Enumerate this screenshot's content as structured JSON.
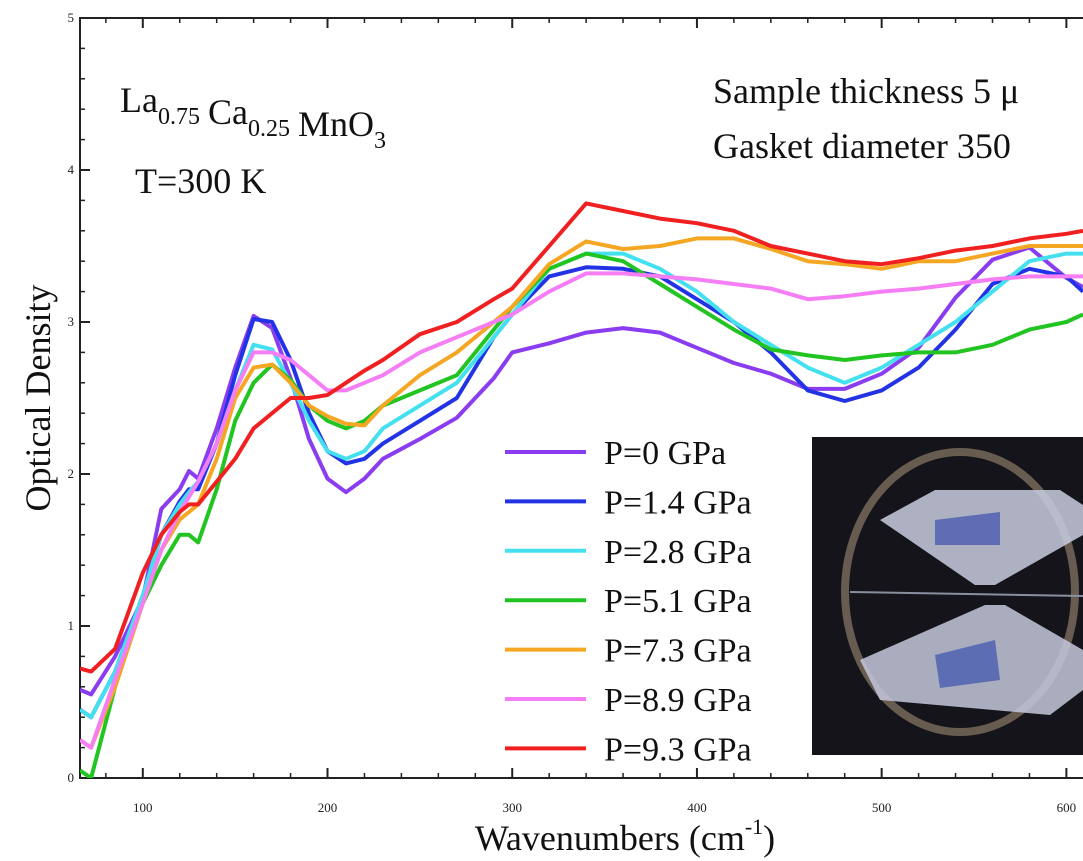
{
  "chart_data": {
    "type": "line",
    "xlabel": {
      "text": "Wavenumbers (cm",
      "sup": "-1",
      "end": ")"
    },
    "ylabel": "Optical Density",
    "annotations": {
      "formula": [
        {
          "text": "La",
          "sub": "0.75"
        },
        {
          "text": "Ca",
          "sub": "0.25"
        },
        {
          "text": "MnO",
          "sub": "3"
        }
      ],
      "temperature": "T=300 K",
      "thickness": "Sample thickness 5 μ",
      "gasket": "Gasket diameter 350"
    },
    "x": [
      66,
      72,
      85,
      100,
      110,
      120,
      125,
      130,
      140,
      150,
      160,
      170,
      180,
      190,
      200,
      210,
      220,
      230,
      250,
      270,
      290,
      300,
      320,
      340,
      360,
      380,
      400,
      420,
      440,
      460,
      480,
      500,
      520,
      540,
      560,
      580,
      600,
      609
    ],
    "series": [
      {
        "name": "P=0 GPa",
        "color": "#8a3cf0",
        "values": [
          0.58,
          0.55,
          0.8,
          1.18,
          1.77,
          1.9,
          2.02,
          1.97,
          2.3,
          2.7,
          3.04,
          2.96,
          2.63,
          2.23,
          1.97,
          1.88,
          1.97,
          2.1,
          2.23,
          2.37,
          2.63,
          2.8,
          2.86,
          2.93,
          2.96,
          2.93,
          2.83,
          2.73,
          2.66,
          2.56,
          2.56,
          2.66,
          2.83,
          3.16,
          3.41,
          3.49,
          3.29,
          3.23
        ]
      },
      {
        "name": "P=1.4 GPa",
        "color": "#2233e6",
        "values": [
          0.45,
          0.4,
          0.7,
          1.2,
          1.6,
          1.82,
          1.9,
          1.9,
          2.2,
          2.65,
          3.02,
          3.0,
          2.75,
          2.4,
          2.15,
          2.07,
          2.1,
          2.2,
          2.35,
          2.5,
          2.9,
          3.05,
          3.3,
          3.36,
          3.35,
          3.3,
          3.15,
          3.0,
          2.8,
          2.55,
          2.48,
          2.55,
          2.7,
          2.95,
          3.25,
          3.35,
          3.3,
          3.2
        ]
      },
      {
        "name": "P=2.8 GPa",
        "color": "#44e0f0",
        "values": [
          0.45,
          0.4,
          0.7,
          1.2,
          1.6,
          1.8,
          1.88,
          1.95,
          2.2,
          2.55,
          2.85,
          2.82,
          2.6,
          2.35,
          2.15,
          2.1,
          2.15,
          2.3,
          2.45,
          2.6,
          2.9,
          3.05,
          3.35,
          3.45,
          3.45,
          3.35,
          3.2,
          3.0,
          2.85,
          2.7,
          2.6,
          2.7,
          2.85,
          3.0,
          3.2,
          3.4,
          3.45,
          3.45
        ]
      },
      {
        "name": "P=5.1 GPa",
        "color": "#22c422",
        "values": [
          0.05,
          0,
          0.6,
          1.15,
          1.4,
          1.6,
          1.6,
          1.55,
          1.9,
          2.35,
          2.6,
          2.72,
          2.62,
          2.45,
          2.35,
          2.3,
          2.35,
          2.45,
          2.55,
          2.65,
          2.95,
          3.1,
          3.35,
          3.45,
          3.4,
          3.25,
          3.1,
          2.95,
          2.82,
          2.78,
          2.75,
          2.78,
          2.8,
          2.8,
          2.85,
          2.95,
          3.0,
          3.05
        ]
      },
      {
        "name": "P=7.3 GPa",
        "color": "#f5a623",
        "values": [
          0.25,
          0.2,
          0.6,
          1.15,
          1.5,
          1.7,
          1.75,
          1.8,
          2.1,
          2.5,
          2.7,
          2.72,
          2.6,
          2.45,
          2.38,
          2.33,
          2.32,
          2.45,
          2.65,
          2.8,
          3.0,
          3.1,
          3.38,
          3.53,
          3.48,
          3.5,
          3.55,
          3.55,
          3.48,
          3.4,
          3.38,
          3.35,
          3.4,
          3.4,
          3.45,
          3.5,
          3.5,
          3.5
        ]
      },
      {
        "name": "P=8.9 GPa",
        "color": "#f57ef5",
        "values": [
          0.25,
          0.2,
          0.65,
          1.15,
          1.5,
          1.75,
          1.85,
          1.95,
          2.2,
          2.55,
          2.8,
          2.8,
          2.75,
          2.65,
          2.55,
          2.55,
          2.6,
          2.65,
          2.8,
          2.9,
          3.0,
          3.05,
          3.2,
          3.32,
          3.32,
          3.3,
          3.28,
          3.25,
          3.22,
          3.15,
          3.17,
          3.2,
          3.22,
          3.25,
          3.28,
          3.3,
          3.3,
          3.3
        ]
      },
      {
        "name": "P=9.3 GPa",
        "color": "#f02020",
        "values": [
          0.72,
          0.7,
          0.85,
          1.35,
          1.6,
          1.75,
          1.8,
          1.8,
          1.95,
          2.1,
          2.3,
          2.4,
          2.5,
          2.5,
          2.52,
          2.6,
          2.68,
          2.75,
          2.92,
          3.0,
          3.15,
          3.22,
          3.5,
          3.78,
          3.73,
          3.68,
          3.65,
          3.6,
          3.5,
          3.45,
          3.4,
          3.38,
          3.42,
          3.47,
          3.5,
          3.55,
          3.58,
          3.6
        ]
      }
    ],
    "xlim": [
      66,
      609
    ],
    "ylim": [
      0,
      5
    ],
    "xticks": [
      100,
      200,
      300,
      400,
      500,
      600
    ],
    "yticks": [
      0,
      1,
      2,
      3,
      4,
      5
    ]
  }
}
